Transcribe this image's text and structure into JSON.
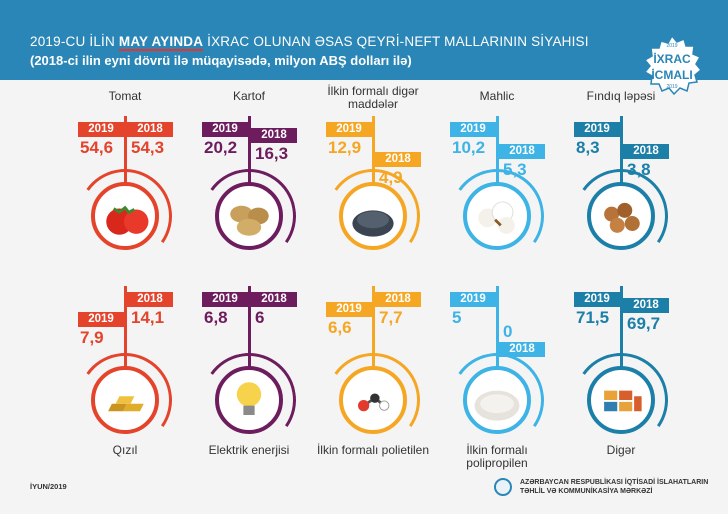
{
  "header": {
    "title_prefix": "2019-CU İLİN ",
    "title_highlight": "MAY AYINDA",
    "title_suffix": " İXRAC OLUNAN ƏSAS QEYRİ-NEFT MALLARININ SİYAHISI",
    "subtitle": "(2018-ci ilin eyni dövrü ilə müqayisədə, milyon ABŞ dolları ilə)"
  },
  "badge": {
    "year_top": "2019",
    "line1": "İXRAC",
    "line2": "İCMALI",
    "year_bottom": "2019"
  },
  "year_labels": {
    "y2019": "2019",
    "y2018": "2018"
  },
  "items": [
    {
      "name": "Tomat",
      "v2019": "54,6",
      "v2018": "54,3",
      "color": "#e3442b",
      "icon": "tomato-icon"
    },
    {
      "name": "Kartof",
      "v2019": "20,2",
      "v2018": "16,3",
      "color": "#6d1d5e",
      "icon": "potato-icon"
    },
    {
      "name": "İlkin formalı digər maddələr",
      "v2019": "12,9",
      "v2018": "4,9",
      "color": "#f5a623",
      "icon": "raw-material-icon"
    },
    {
      "name": "Mahlic",
      "v2019": "10,2",
      "v2018": "5,3",
      "color": "#3db3e6",
      "icon": "cotton-icon"
    },
    {
      "name": "Fındıq ləpəsi",
      "v2019": "8,3",
      "v2018": "3,8",
      "color": "#1b7fa8",
      "icon": "hazelnut-icon"
    },
    {
      "name": "Qızıl",
      "v2019": "7,9",
      "v2018": "14,1",
      "color": "#e3442b",
      "icon": "gold-icon"
    },
    {
      "name": "Elektrik enerjisi",
      "v2019": "6,8",
      "v2018": "6",
      "color": "#6d1d5e",
      "icon": "light-bulb-icon"
    },
    {
      "name": "İlkin formalı polietilen",
      "v2019": "6,6",
      "v2018": "7,7",
      "color": "#f5a623",
      "icon": "polyethylene-molecule-icon"
    },
    {
      "name": "İlkin formalı polipropilen",
      "v2019": "5",
      "v2018": "0",
      "color": "#3db3e6",
      "icon": "polypropylene-icon"
    },
    {
      "name": "Digər",
      "v2019": "71,5",
      "v2018": "69,7",
      "color": "#1b7fa8",
      "icon": "containers-icon"
    }
  ],
  "footer": {
    "date": "İYUN/2019",
    "org_line1": "AZƏRBAYCAN RESPUBLİKASI İQTİSADİ İSLAHATLARIN",
    "org_line2": "TƏHLİL VƏ KOMMUNİKASİYA MƏRKƏZİ"
  }
}
